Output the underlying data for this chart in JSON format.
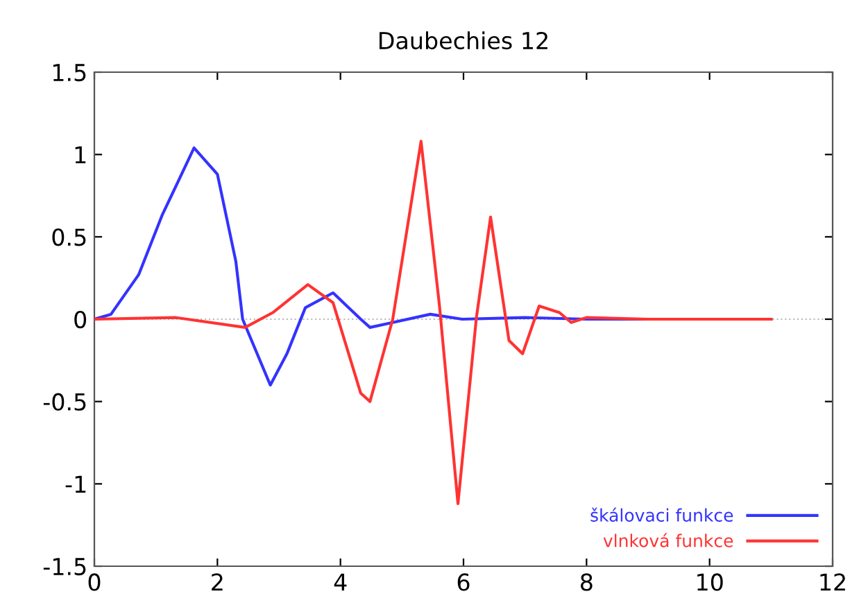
{
  "chart_data": {
    "type": "line",
    "title": "Daubechies 12",
    "xlim": [
      0,
      12
    ],
    "xticks": [
      0,
      2,
      4,
      6,
      8,
      10,
      12
    ],
    "ylim": [
      -1.5,
      1.5
    ],
    "yticks": [
      -1.5,
      -1,
      -0.5,
      0,
      0.5,
      1,
      1.5
    ],
    "grid": false,
    "legend": "bottom right",
    "marker": "none",
    "line_style": "solid",
    "ref_lines": [
      {
        "axis": "y",
        "value": 0,
        "color": "#bbbbbb",
        "line_style": "dotted"
      }
    ],
    "series": [
      {
        "name": "škálovaci funkce",
        "color": "#3333ff",
        "x": [
          0,
          0.27,
          0.72,
          1.1,
          1.62,
          2.0,
          2.3,
          2.41,
          2.86,
          3.13,
          3.43,
          3.88,
          4.33,
          4.48,
          4.85,
          5.46,
          5.98,
          7.0,
          8.0,
          9.0,
          10.0,
          11.0
        ],
        "values": [
          0,
          0.03,
          0.27,
          0.63,
          1.04,
          0.88,
          0.35,
          0,
          -0.4,
          -0.21,
          0.07,
          0.16,
          0,
          -0.05,
          -0.02,
          0.03,
          0,
          0.01,
          0,
          0,
          0,
          0
        ]
      },
      {
        "name": "vlnková funkce",
        "color": "#ff3333",
        "x": [
          0,
          1.32,
          2.45,
          2.9,
          3.47,
          3.88,
          4.33,
          4.48,
          4.85,
          5.31,
          5.61,
          5.91,
          6.21,
          6.44,
          6.74,
          6.96,
          7.23,
          7.56,
          7.75,
          8.0,
          9.0,
          10.0,
          11.0
        ],
        "values": [
          0,
          0.01,
          -0.05,
          0.04,
          0.21,
          0.1,
          -0.45,
          -0.5,
          0,
          1.08,
          0.08,
          -1.12,
          0.01,
          0.62,
          -0.13,
          -0.21,
          0.08,
          0.04,
          -0.02,
          0.01,
          0,
          0,
          0
        ]
      }
    ]
  }
}
